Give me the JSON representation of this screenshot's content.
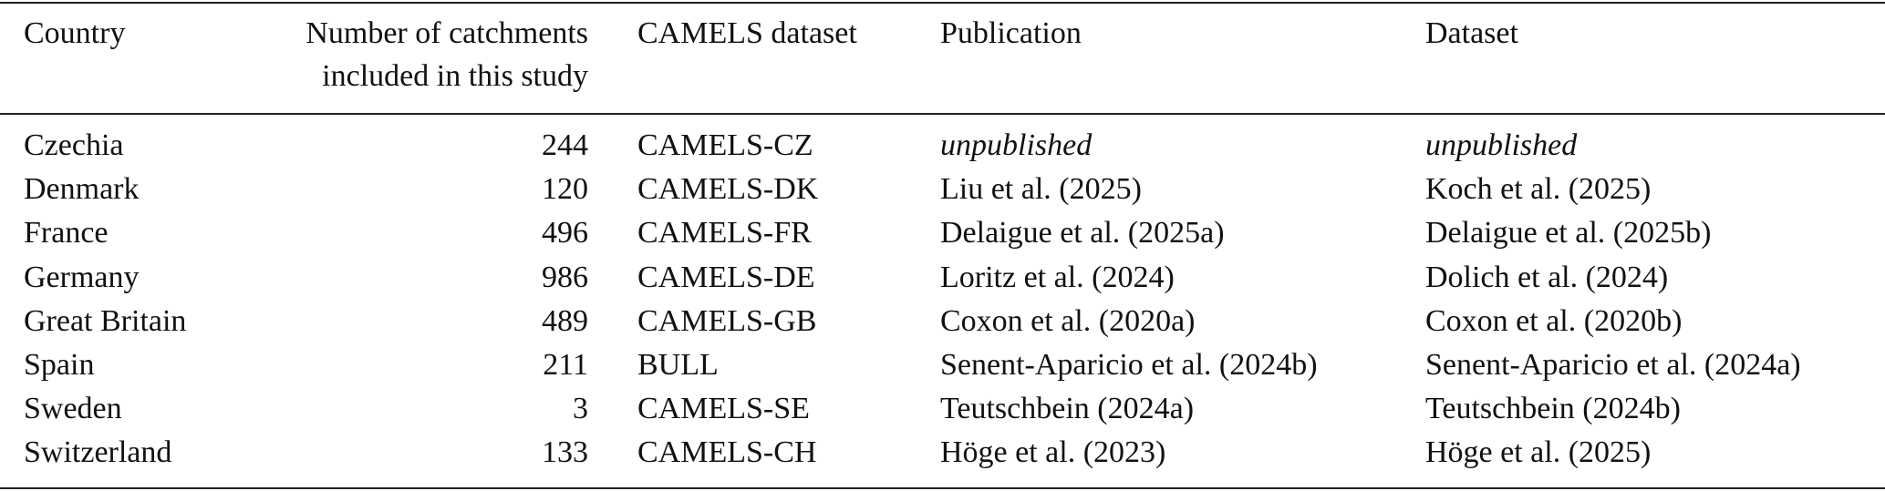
{
  "table": {
    "header": [
      "Country",
      [
        "Number of catchments",
        "included in this study"
      ],
      "CAMELS dataset",
      "Publication",
      "Dataset"
    ],
    "rows": [
      [
        "Czechia",
        244,
        "CAMELS-CZ",
        "unpublished",
        "unpublished"
      ],
      [
        "Denmark",
        120,
        "CAMELS-DK",
        "Liu et al. (2025)",
        "Koch et al. (2025)"
      ],
      [
        "France",
        496,
        "CAMELS-FR",
        "Delaigue et al. (2025a)",
        "Delaigue et al. (2025b)"
      ],
      [
        "Germany",
        986,
        "CAMELS-DE",
        "Loritz et al. (2024)",
        "Dolich et al. (2024)"
      ],
      [
        "Great Britain",
        489,
        "CAMELS-GB",
        "Coxon et al. (2020a)",
        "Coxon et al. (2020b)"
      ],
      [
        "Spain",
        211,
        "BULL",
        "Senent-Aparicio et al. (2024b)",
        "Senent-Aparicio et al. (2024a)"
      ],
      [
        "Sweden",
        3,
        "CAMELS-SE",
        "Teutschbein (2024a)",
        "Teutschbein (2024b)"
      ],
      [
        "Switzerland",
        133,
        "CAMELS-CH",
        "Höge et al. (2023)",
        "Höge et al. (2025)"
      ]
    ]
  }
}
